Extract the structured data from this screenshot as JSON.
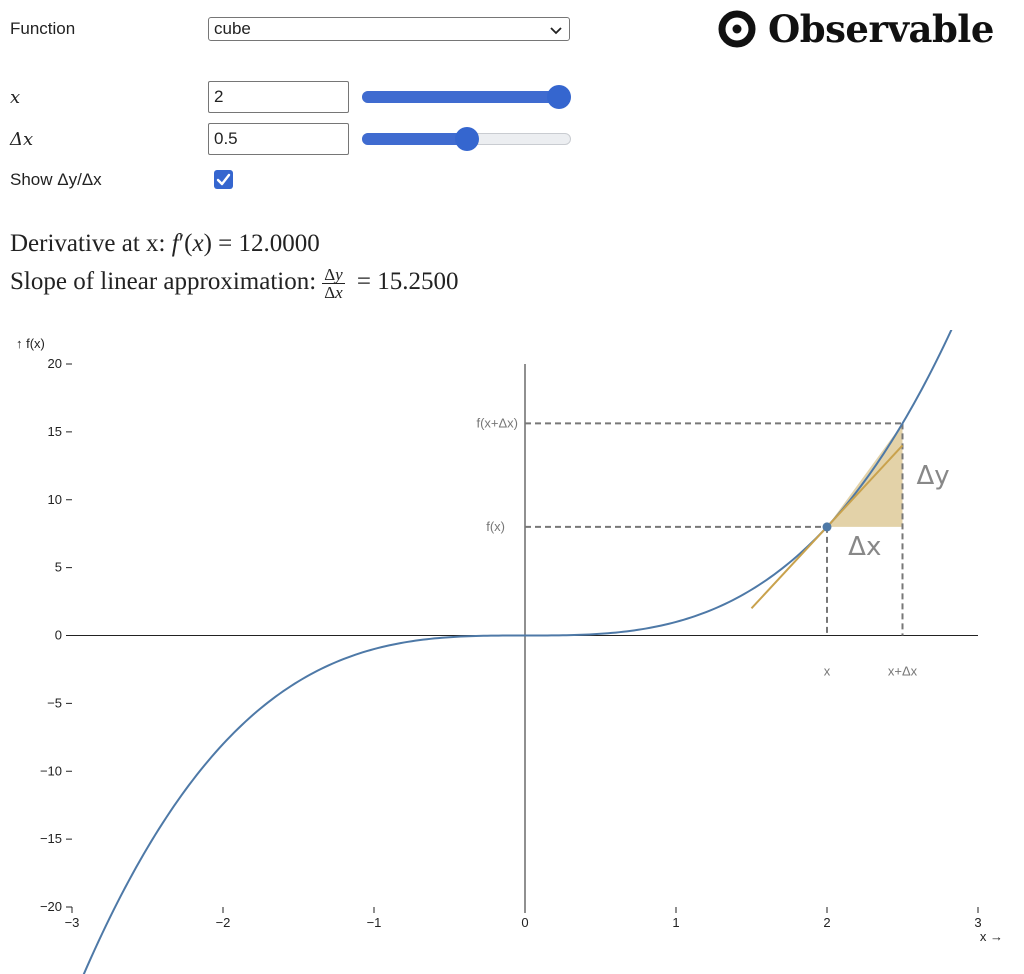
{
  "controls": {
    "function": {
      "label": "Function",
      "value": "cube"
    },
    "x": {
      "label": "x",
      "value": "2",
      "slider_fraction": 1.0
    },
    "dx": {
      "label": "Δx",
      "value": "0.5",
      "slider_fraction": 0.5
    },
    "show": {
      "label": "Show Δy/Δx",
      "checked": true
    }
  },
  "logo": {
    "text": "Observable"
  },
  "readout": {
    "derivative_prefix": "Derivative at x:",
    "derivative_value": "12.0000",
    "slope_prefix": "Slope of linear approximation:",
    "slope_value": "15.2500"
  },
  "chart_data": {
    "type": "line",
    "function": "x^3",
    "x_min": -3,
    "x_max": 3,
    "y_min": -20,
    "y_max": 20,
    "x_ticks": [
      -3,
      -2,
      -1,
      0,
      1,
      2,
      3
    ],
    "x_tick_labels": [
      "−3",
      "−2",
      "−1",
      "0",
      "1",
      "2",
      "3"
    ],
    "y_ticks": [
      -20,
      -15,
      -10,
      -5,
      0,
      5,
      10,
      15,
      20
    ],
    "y_tick_labels": [
      "−20",
      "−15",
      "−10",
      "−5",
      "0",
      "5",
      "10",
      "15",
      "20"
    ],
    "x_axis_label": "x →",
    "y_axis_label": "↑ f(x)",
    "x": 2,
    "dx": 0.5,
    "fx": 8,
    "fx_dx": 15.625,
    "tangent_x": [
      1.5,
      2.5
    ],
    "guide_labels": {
      "fx": "f(x)",
      "fxdx": "f(x+Δx)",
      "x": "x",
      "xdx": "x+Δx"
    },
    "delta_labels": {
      "dx": "Δx",
      "dy": "Δy"
    },
    "colors": {
      "curve": "#4e79a7",
      "tangent": "#c9a24d",
      "fill": "#e3d2a8",
      "guide": "#777777",
      "point": "#4e79a7"
    }
  }
}
